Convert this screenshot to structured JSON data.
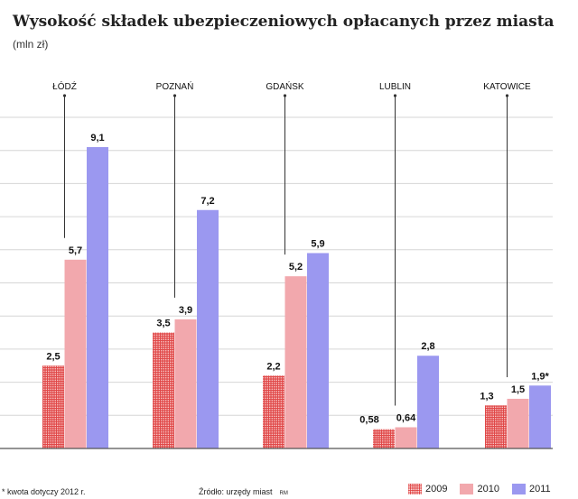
{
  "title": "Wysokość składek ubezpieczeniowych opłacanych przez miasta",
  "subtitle": "(mln zł)",
  "footnote": "* kwota dotyczy 2012 r.",
  "source": "Źródło: urzędy miast",
  "source_tag": "RM",
  "colors": {
    "series_2009": "#e04848",
    "series_2010": "#f2a8ad",
    "series_2011": "#9b98f0",
    "grid": "#d6d6d6"
  },
  "chart_data": {
    "type": "bar",
    "categories": [
      "ŁÓDŹ",
      "POZNAŃ",
      "GDAŃSK",
      "LUBLIN",
      "KATOWICE"
    ],
    "series": [
      {
        "name": "2009",
        "values": [
          2.5,
          3.5,
          2.2,
          0.58,
          1.3
        ],
        "labels": [
          "2,5",
          "3,5",
          "2,2",
          "0,58",
          "1,3"
        ]
      },
      {
        "name": "2010",
        "values": [
          5.7,
          3.9,
          5.2,
          0.64,
          1.5
        ],
        "labels": [
          "5,7",
          "3,9",
          "5,2",
          "0,64",
          "1,5"
        ]
      },
      {
        "name": "2011",
        "values": [
          9.1,
          7.2,
          5.9,
          2.8,
          1.9
        ],
        "labels": [
          "9,1",
          "7,2",
          "5,9",
          "2,8",
          "1,9*"
        ]
      }
    ],
    "ylim": [
      0,
      10
    ],
    "grid": true,
    "legend_position": "bottom-right"
  }
}
